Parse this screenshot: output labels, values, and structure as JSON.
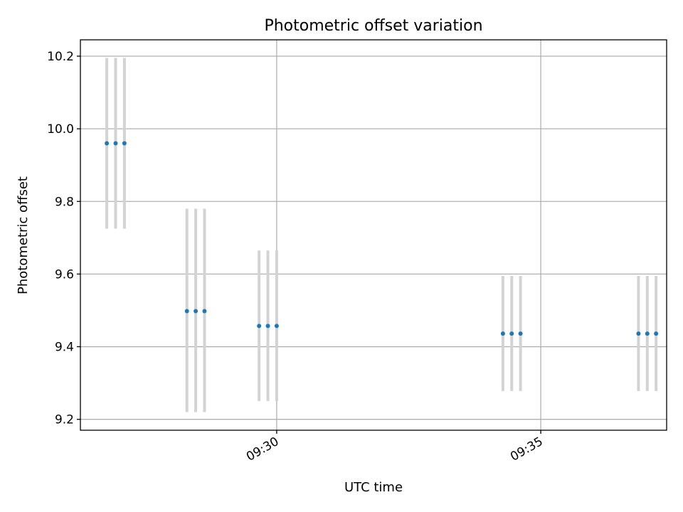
{
  "chart_data": {
    "type": "scatter",
    "title": "Photometric offset variation",
    "xlabel": "UTC time",
    "ylabel": "Photometric offset",
    "xlim": [
      "09:26:17",
      "09:37:23"
    ],
    "ylim": [
      9.17,
      10.245
    ],
    "grid": true,
    "x_ticks": [
      {
        "label": "09:30",
        "value": "09:30:00"
      },
      {
        "label": "09:35",
        "value": "09:35:00"
      }
    ],
    "y_ticks": [
      {
        "label": "9.2",
        "value": 9.2
      },
      {
        "label": "9.4",
        "value": 9.4
      },
      {
        "label": "9.6",
        "value": 9.6
      },
      {
        "label": "9.8",
        "value": 9.8
      },
      {
        "label": "10.0",
        "value": 10.0
      },
      {
        "label": "10.2",
        "value": 10.2
      }
    ],
    "point_color": "#1f77b4",
    "errorbar_color": "#d3d3d3",
    "points": [
      {
        "x": "09:26:47",
        "y": 9.96,
        "yerr_low": 9.725,
        "yerr_high": 10.195
      },
      {
        "x": "09:26:57",
        "y": 9.96,
        "yerr_low": 9.725,
        "yerr_high": 10.195
      },
      {
        "x": "09:27:07",
        "y": 9.96,
        "yerr_low": 9.725,
        "yerr_high": 10.195
      },
      {
        "x": "09:28:18",
        "y": 9.498,
        "yerr_low": 9.22,
        "yerr_high": 9.78
      },
      {
        "x": "09:28:28",
        "y": 9.498,
        "yerr_low": 9.22,
        "yerr_high": 9.78
      },
      {
        "x": "09:28:38",
        "y": 9.498,
        "yerr_low": 9.22,
        "yerr_high": 9.78
      },
      {
        "x": "09:29:40",
        "y": 9.457,
        "yerr_low": 9.25,
        "yerr_high": 9.665
      },
      {
        "x": "09:29:50",
        "y": 9.457,
        "yerr_low": 9.25,
        "yerr_high": 9.665
      },
      {
        "x": "09:30:00",
        "y": 9.457,
        "yerr_low": 9.25,
        "yerr_high": 9.665
      },
      {
        "x": "09:34:17",
        "y": 9.436,
        "yerr_low": 9.278,
        "yerr_high": 9.595
      },
      {
        "x": "09:34:27",
        "y": 9.436,
        "yerr_low": 9.278,
        "yerr_high": 9.595
      },
      {
        "x": "09:34:37",
        "y": 9.436,
        "yerr_low": 9.278,
        "yerr_high": 9.595
      },
      {
        "x": "09:36:51",
        "y": 9.436,
        "yerr_low": 9.278,
        "yerr_high": 9.595
      },
      {
        "x": "09:37:01",
        "y": 9.436,
        "yerr_low": 9.278,
        "yerr_high": 9.595
      },
      {
        "x": "09:37:11",
        "y": 9.436,
        "yerr_low": 9.278,
        "yerr_high": 9.595
      }
    ]
  }
}
